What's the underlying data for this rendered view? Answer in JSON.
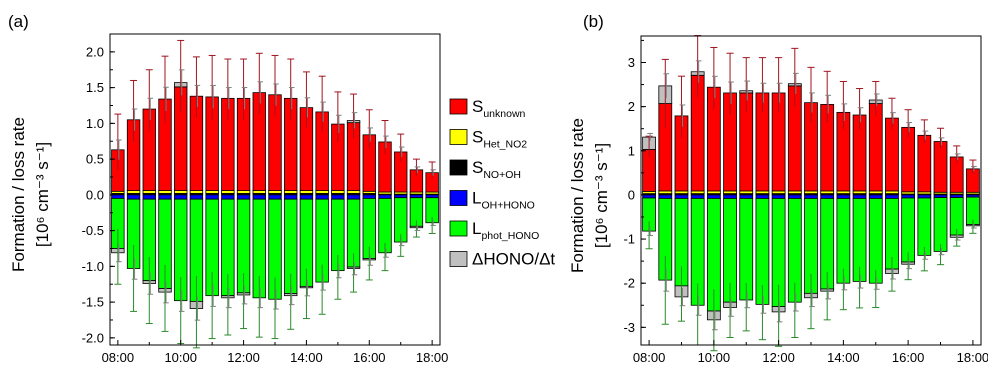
{
  "chart_data": [
    {
      "type": "bar",
      "panel_label": "(a)",
      "ylabel": {
        "main": "Formation / loss rate",
        "unit": "[10⁶ cm⁻³ s⁻¹]"
      },
      "ylim": [
        -2.1,
        2.25
      ],
      "yticks": [
        2.0,
        1.5,
        1.0,
        0.5,
        0.0,
        -0.5,
        -1.0,
        -1.5,
        -2.0
      ],
      "ytick_labels": [
        "2.0",
        "1.5",
        "1.0",
        "0.5",
        "0.0",
        "-0.5",
        "-1.0",
        "-1.5",
        "-2.0"
      ],
      "xlim": [
        7.75,
        18.25
      ],
      "xticks": [
        8,
        10,
        12,
        14,
        16,
        18
      ],
      "xtick_labels": [
        "08:00",
        "10:00",
        "12:00",
        "14:00",
        "16:00",
        "18:00"
      ],
      "x": [
        8.0,
        8.5,
        9.0,
        9.5,
        10.0,
        10.5,
        11.0,
        11.5,
        12.0,
        12.5,
        13.0,
        13.5,
        14.0,
        14.5,
        15.0,
        15.5,
        16.0,
        16.5,
        17.0,
        17.5,
        18.0
      ],
      "series": [
        {
          "key": "s_unknown",
          "values": [
            0.58,
            0.99,
            1.14,
            1.28,
            1.45,
            1.32,
            1.31,
            1.29,
            1.29,
            1.37,
            1.34,
            1.29,
            1.16,
            1.1,
            0.93,
            0.95,
            0.79,
            0.7,
            0.56,
            0.31,
            0.27
          ],
          "err": [
            0.5,
            0.55,
            0.55,
            0.6,
            0.65,
            0.55,
            0.58,
            0.55,
            0.55,
            0.55,
            0.55,
            0.55,
            0.5,
            0.5,
            0.45,
            0.4,
            0.35,
            0.3,
            0.25,
            0.15,
            0.15
          ]
        },
        {
          "key": "s_het_no2",
          "values": [
            0.03,
            0.04,
            0.04,
            0.04,
            0.04,
            0.04,
            0.04,
            0.04,
            0.04,
            0.04,
            0.04,
            0.04,
            0.04,
            0.04,
            0.04,
            0.04,
            0.03,
            0.03,
            0.03,
            0.03,
            0.03
          ]
        },
        {
          "key": "s_no_oh",
          "values": [
            0.02,
            0.02,
            0.02,
            0.02,
            0.02,
            0.02,
            0.02,
            0.02,
            0.02,
            0.02,
            0.02,
            0.02,
            0.02,
            0.02,
            0.02,
            0.02,
            0.02,
            0.01,
            0.01,
            0.01,
            0.01
          ]
        },
        {
          "key": "l_oh_hono",
          "values": [
            -0.05,
            -0.06,
            -0.06,
            -0.06,
            -0.06,
            -0.06,
            -0.06,
            -0.06,
            -0.06,
            -0.06,
            -0.06,
            -0.06,
            -0.06,
            -0.06,
            -0.06,
            -0.06,
            -0.05,
            -0.05,
            -0.04,
            -0.04,
            -0.04
          ]
        },
        {
          "key": "l_phot_hono",
          "values": [
            -0.7,
            -0.97,
            -1.14,
            -1.25,
            -1.42,
            -1.43,
            -1.35,
            -1.35,
            -1.31,
            -1.38,
            -1.4,
            -1.32,
            -1.22,
            -1.16,
            -1.0,
            -0.95,
            -0.84,
            -0.76,
            -0.62,
            -0.4,
            -0.35
          ],
          "err": [
            0.5,
            0.6,
            0.6,
            0.6,
            0.6,
            0.65,
            0.6,
            0.55,
            0.5,
            0.55,
            0.55,
            0.5,
            0.45,
            0.45,
            0.4,
            0.35,
            0.3,
            0.25,
            0.2,
            0.15,
            0.15
          ]
        },
        {
          "key": "delta_hono",
          "values": [
            0.0,
            0.0,
            0.0,
            0.0,
            0.06,
            0.0,
            0.0,
            0.0,
            0.0,
            0.0,
            0.0,
            0.0,
            0.0,
            0.0,
            0.0,
            0.03,
            0.0,
            0.0,
            0.0,
            0.0,
            0.0
          ],
          "neg_values": [
            -0.06,
            0.0,
            -0.04,
            -0.05,
            0.0,
            -0.1,
            0.0,
            -0.03,
            -0.03,
            0.0,
            0.0,
            -0.03,
            -0.02,
            0.0,
            0.0,
            -0.02,
            -0.02,
            0.0,
            0.0,
            -0.02,
            0.0
          ]
        }
      ]
    },
    {
      "type": "bar",
      "panel_label": "(b)",
      "ylabel": {
        "main": "Formation / loss rate",
        "unit": "[10⁶ cm⁻³ s⁻¹]"
      },
      "ylim": [
        -3.4,
        3.6
      ],
      "yticks": [
        3,
        2,
        1,
        0,
        -1,
        -2,
        -3
      ],
      "ytick_labels": [
        "3",
        "2",
        "1",
        "0",
        "-1",
        "-2",
        "-3"
      ],
      "xlim": [
        7.75,
        18.25
      ],
      "xticks": [
        8,
        10,
        12,
        14,
        16,
        18
      ],
      "xtick_labels": [
        "08:00",
        "10:00",
        "12:00",
        "14:00",
        "16:00",
        "18:00"
      ],
      "x": [
        8.0,
        8.5,
        9.0,
        9.5,
        10.0,
        10.5,
        11.0,
        11.5,
        12.0,
        12.5,
        13.0,
        13.5,
        14.0,
        14.5,
        15.0,
        15.5,
        16.0,
        16.5,
        17.0,
        17.5,
        18.0
      ],
      "series": [
        {
          "key": "s_unknown",
          "values": [
            0.95,
            1.98,
            1.7,
            2.62,
            2.35,
            2.22,
            2.22,
            2.22,
            2.22,
            2.38,
            2.0,
            1.96,
            1.78,
            1.72,
            1.98,
            1.65,
            1.46,
            1.28,
            1.15,
            0.8,
            0.53
          ],
          "err": [
            0.3,
            1.0,
            0.9,
            0.9,
            0.9,
            0.9,
            0.8,
            0.8,
            0.8,
            0.85,
            0.8,
            0.75,
            0.7,
            0.6,
            0.5,
            0.45,
            0.4,
            0.35,
            0.3,
            0.25,
            0.2
          ]
        },
        {
          "key": "s_het_no2",
          "values": [
            0.05,
            0.06,
            0.06,
            0.06,
            0.06,
            0.06,
            0.06,
            0.06,
            0.06,
            0.06,
            0.06,
            0.06,
            0.06,
            0.06,
            0.06,
            0.06,
            0.05,
            0.05,
            0.04,
            0.04,
            0.04
          ]
        },
        {
          "key": "s_no_oh",
          "values": [
            0.03,
            0.03,
            0.03,
            0.03,
            0.03,
            0.03,
            0.03,
            0.03,
            0.03,
            0.03,
            0.03,
            0.03,
            0.03,
            0.03,
            0.03,
            0.03,
            0.02,
            0.02,
            0.02,
            0.02,
            0.02
          ]
        },
        {
          "key": "l_oh_hono",
          "values": [
            -0.07,
            -0.08,
            -0.08,
            -0.08,
            -0.08,
            -0.08,
            -0.08,
            -0.08,
            -0.08,
            -0.08,
            -0.08,
            -0.08,
            -0.08,
            -0.08,
            -0.08,
            -0.08,
            -0.07,
            -0.07,
            -0.06,
            -0.06,
            -0.05
          ]
        },
        {
          "key": "l_phot_hono",
          "values": [
            -0.75,
            -1.85,
            -1.98,
            -2.42,
            -2.55,
            -2.35,
            -2.3,
            -2.4,
            -2.45,
            -2.35,
            -2.15,
            -2.05,
            -1.92,
            -1.88,
            -1.92,
            -1.6,
            -1.45,
            -1.3,
            -1.22,
            -0.85,
            -0.62
          ],
          "err": [
            0.4,
            1.0,
            0.8,
            0.9,
            0.9,
            0.8,
            0.7,
            0.8,
            0.9,
            0.8,
            0.8,
            0.7,
            0.6,
            0.6,
            0.55,
            0.5,
            0.4,
            0.35,
            0.3,
            0.25,
            0.2
          ]
        },
        {
          "key": "delta_hono",
          "values": [
            0.28,
            0.4,
            0.0,
            0.08,
            0.0,
            0.0,
            0.05,
            0.0,
            0.0,
            0.05,
            0.0,
            0.0,
            0.0,
            0.0,
            0.08,
            0.0,
            0.0,
            0.0,
            0.0,
            0.0,
            0.0
          ],
          "neg_values": [
            0.0,
            0.0,
            -0.25,
            0.0,
            -0.2,
            -0.12,
            0.0,
            0.0,
            -0.12,
            0.0,
            -0.1,
            -0.05,
            0.0,
            0.0,
            0.0,
            -0.1,
            -0.05,
            0.0,
            0.0,
            -0.05,
            -0.03
          ]
        }
      ]
    }
  ],
  "legend": {
    "placement": "center",
    "items": [
      {
        "key": "s_unknown",
        "main": "S",
        "sub": "unknown",
        "color": "#ff0000"
      },
      {
        "key": "s_het_no2",
        "main": "S",
        "sub": "Het_NO2",
        "color": "#ffff00"
      },
      {
        "key": "s_no_oh",
        "main": "S",
        "sub": "NO+OH",
        "color": "#000000"
      },
      {
        "key": "l_oh_hono",
        "main": "L",
        "sub": "OH+HONO",
        "color": "#0000ff"
      },
      {
        "key": "l_phot_hono",
        "main": "L",
        "sub": "phot_HONO",
        "color": "#00ff00"
      },
      {
        "key": "delta_hono",
        "main": "ΔHONO/Δt",
        "sub": "",
        "color": "#c0c0c0"
      }
    ]
  },
  "colors": {
    "err_unknown": "#a0141e",
    "err_phot": "#2a8a2a",
    "err_delta": "#808080"
  }
}
